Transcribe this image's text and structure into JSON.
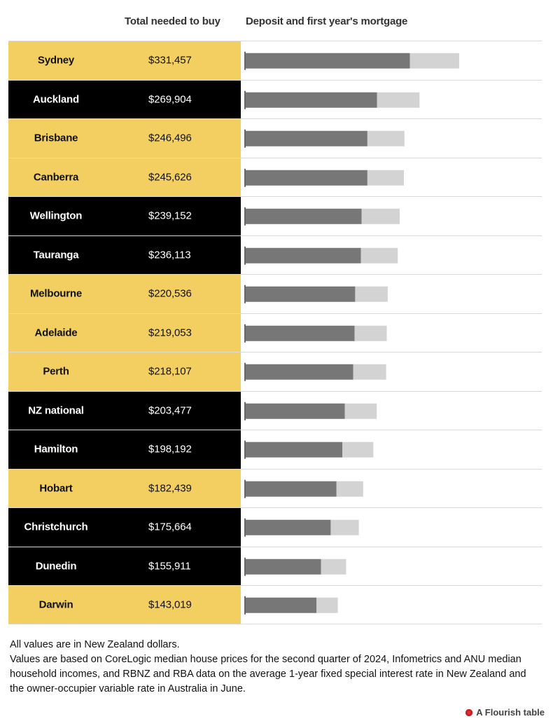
{
  "header": {
    "total_label": "Total needed to buy",
    "deposit_label": "Deposit and first year's mortgage"
  },
  "colors": {
    "yellow_row": "#f3cf62",
    "black_row": "#000000",
    "deposit_bar": "#777777",
    "mortgage_bar": "#d3d3d3"
  },
  "chart_data": {
    "type": "table",
    "title": "",
    "columns": [
      "",
      "Total needed to buy",
      "Deposit and first year's mortgage"
    ],
    "series": [
      {
        "name": "",
        "color": "#777777"
      },
      {
        "name": "",
        "color": "#d3d3d3"
      }
    ],
    "rows": [
      {
        "city": "Sydney",
        "total": "$331,457",
        "total_value": 331457,
        "deposit": 255000,
        "mortgage": 76457,
        "style": "yellow"
      },
      {
        "city": "Auckland",
        "total": "$269,904",
        "total_value": 269904,
        "deposit": 204000,
        "mortgage": 65904,
        "style": "black"
      },
      {
        "city": "Brisbane",
        "total": "$246,496",
        "total_value": 246496,
        "deposit": 189000,
        "mortgage": 57496,
        "style": "yellow"
      },
      {
        "city": "Canberra",
        "total": "$245,626",
        "total_value": 245626,
        "deposit": 189000,
        "mortgage": 56626,
        "style": "yellow"
      },
      {
        "city": "Wellington",
        "total": "$239,152",
        "total_value": 239152,
        "deposit": 180000,
        "mortgage": 59152,
        "style": "black"
      },
      {
        "city": "Tauranga",
        "total": "$236,113",
        "total_value": 236113,
        "deposit": 179000,
        "mortgage": 57113,
        "style": "black"
      },
      {
        "city": "Melbourne",
        "total": "$220,536",
        "total_value": 220536,
        "deposit": 170000,
        "mortgage": 50536,
        "style": "yellow"
      },
      {
        "city": "Adelaide",
        "total": "$219,053",
        "total_value": 219053,
        "deposit": 169000,
        "mortgage": 50053,
        "style": "yellow"
      },
      {
        "city": "Perth",
        "total": "$218,107",
        "total_value": 218107,
        "deposit": 167000,
        "mortgage": 51107,
        "style": "yellow"
      },
      {
        "city": "NZ national",
        "total": "$203,477",
        "total_value": 203477,
        "deposit": 154000,
        "mortgage": 49477,
        "style": "black"
      },
      {
        "city": "Hamilton",
        "total": "$198,192",
        "total_value": 198192,
        "deposit": 150000,
        "mortgage": 48192,
        "style": "black"
      },
      {
        "city": "Hobart",
        "total": "$182,439",
        "total_value": 182439,
        "deposit": 141000,
        "mortgage": 41439,
        "style": "yellow"
      },
      {
        "city": "Christchurch",
        "total": "$175,664",
        "total_value": 175664,
        "deposit": 132000,
        "mortgage": 43664,
        "style": "black"
      },
      {
        "city": "Dunedin",
        "total": "$155,911",
        "total_value": 155911,
        "deposit": 117000,
        "mortgage": 38911,
        "style": "black"
      },
      {
        "city": "Darwin",
        "total": "$143,019",
        "total_value": 143019,
        "deposit": 110000,
        "mortgage": 33019,
        "style": "yellow"
      }
    ],
    "xlim": [
      0,
      450000
    ]
  },
  "notes": {
    "line1": "All values are in New Zealand dollars.",
    "line2": "Values are based on CoreLogic median house prices for the second quarter of 2024, Infometrics and ANU median household incomes, and RBNZ and RBA data on the average 1-year fixed special interest rate in New Zealand and the owner-occupier variable rate in Australia in June."
  },
  "credit": {
    "label": "A Flourish table",
    "icon": "flourish-logo-icon"
  }
}
